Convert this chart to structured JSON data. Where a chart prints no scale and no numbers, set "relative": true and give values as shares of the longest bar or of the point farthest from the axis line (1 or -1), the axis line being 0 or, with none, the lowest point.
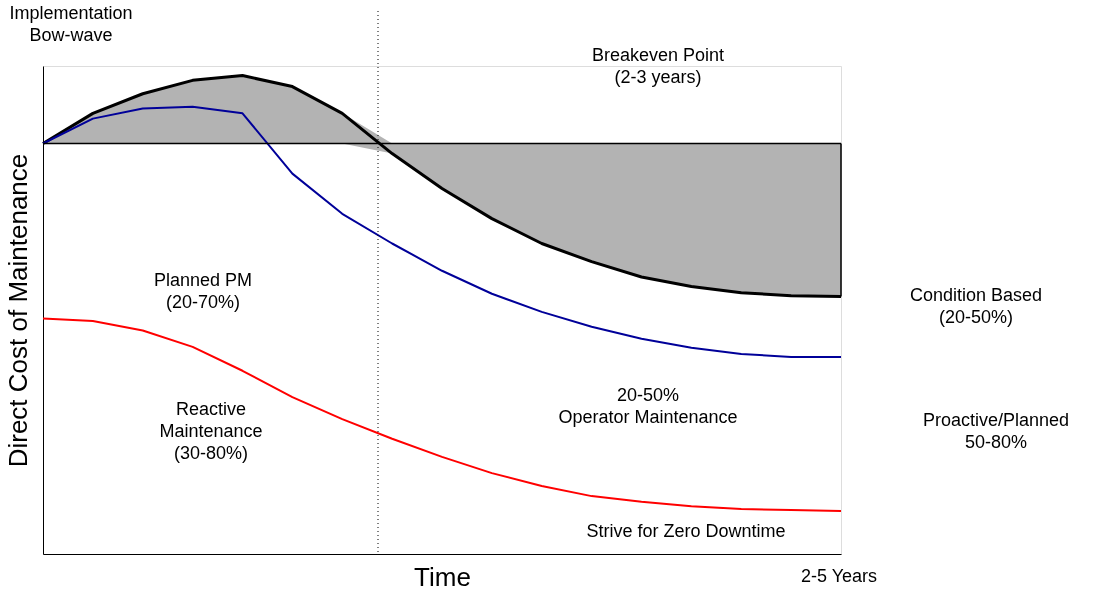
{
  "chart_data": {
    "type": "line",
    "relative": true,
    "xlabel": "Time",
    "ylabel": "Direct Cost of Maintenance",
    "categories": [
      null,
      null,
      null,
      null,
      null,
      null,
      null,
      null,
      null,
      null,
      null,
      null,
      null,
      null,
      null,
      null,
      null
    ],
    "grid": false,
    "line_style": "solid",
    "marker": "none",
    "series": [
      {
        "color": "#000000",
        "values": [
          0.858,
          0.921,
          0.962,
          0.99,
          1.0,
          0.977,
          0.921,
          0.837,
          0.764,
          0.701,
          0.649,
          0.611,
          0.579,
          0.559,
          0.546,
          0.54,
          0.538
        ],
        "lower": [
          0.858,
          0.858,
          0.858,
          0.858,
          0.858,
          0.858,
          0.858,
          0.837,
          0.764,
          0.701,
          0.649,
          0.611,
          0.579,
          0.559,
          0.546,
          0.54,
          0.538
        ],
        "upper": [
          0.858,
          0.921,
          0.962,
          0.99,
          1.0,
          0.977,
          0.921,
          0.858,
          0.858,
          0.858,
          0.858,
          0.858,
          0.858,
          0.858,
          0.858,
          0.858,
          0.858
        ]
      },
      {
        "color": "#000099",
        "values": [
          0.858,
          0.91,
          0.931,
          0.935,
          0.921,
          0.795,
          0.711,
          0.649,
          0.592,
          0.544,
          0.506,
          0.475,
          0.45,
          0.431,
          0.418,
          0.412,
          0.412
        ]
      },
      {
        "color": "#ff0000",
        "values": [
          0.492,
          0.487,
          0.467,
          0.433,
          0.383,
          0.328,
          0.282,
          0.241,
          0.203,
          0.169,
          0.142,
          0.121,
          0.109,
          0.1,
          0.094,
          0.092,
          0.09
        ]
      }
    ],
    "ref_lines": [
      {
        "axis": "y",
        "value": 0.858,
        "color": "#000000"
      }
    ],
    "annotations": [
      "Implementation\nBow-wave",
      "Breakeven Point\n(2-3 years)",
      "Planned PM\n(20-70%)",
      "Reactive\nMaintenance\n(30-80%)",
      "20-50%\nOperator Maintenance",
      "Strive for Zero Downtime",
      "Condition Based\n(20-50%)",
      "Proactive/Planned\n50-80%",
      "2-5 Years"
    ]
  }
}
